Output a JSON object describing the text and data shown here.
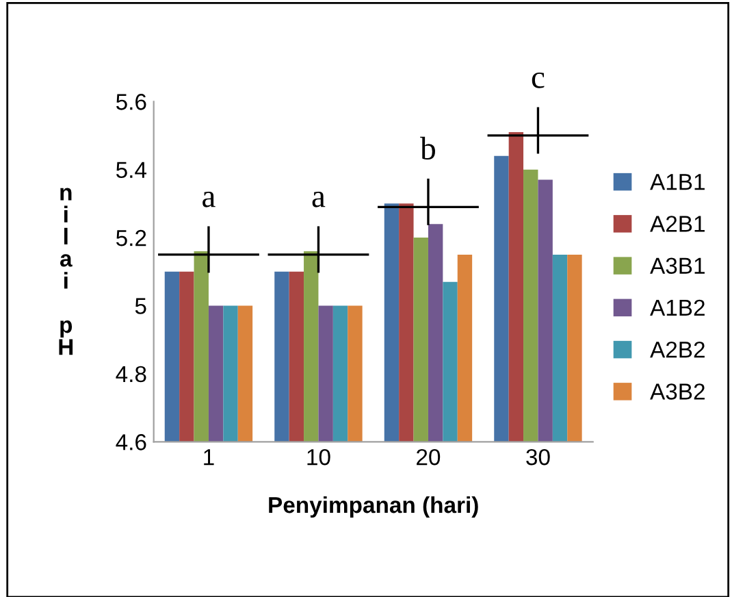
{
  "chart_data": {
    "type": "bar",
    "xlabel": "Penyimpanan (hari)",
    "ylabel": "nilai pH",
    "categories": [
      "1",
      "10",
      "20",
      "30"
    ],
    "series": [
      {
        "name": "A1B1",
        "color": "#4572a7",
        "values": [
          5.1,
          5.1,
          5.3,
          5.44
        ]
      },
      {
        "name": "A2B1",
        "color": "#aa4643",
        "values": [
          5.1,
          5.1,
          5.3,
          5.51
        ]
      },
      {
        "name": "A3B1",
        "color": "#89a54e",
        "values": [
          5.16,
          5.16,
          5.2,
          5.4
        ]
      },
      {
        "name": "A1B2",
        "color": "#71588f",
        "values": [
          5.0,
          5.0,
          5.24,
          5.37
        ]
      },
      {
        "name": "A2B2",
        "color": "#4198af",
        "values": [
          5.0,
          5.0,
          5.07,
          5.15
        ]
      },
      {
        "name": "A3B2",
        "color": "#db843d",
        "values": [
          5.0,
          5.0,
          5.15,
          5.15
        ]
      }
    ],
    "ylim": [
      4.6,
      5.6
    ],
    "yticks": [
      4.6,
      4.8,
      5,
      5.2,
      5.4,
      5.6
    ],
    "grid": false,
    "legend": "right",
    "annotations": [
      "a",
      "a",
      "b",
      "c"
    ]
  }
}
